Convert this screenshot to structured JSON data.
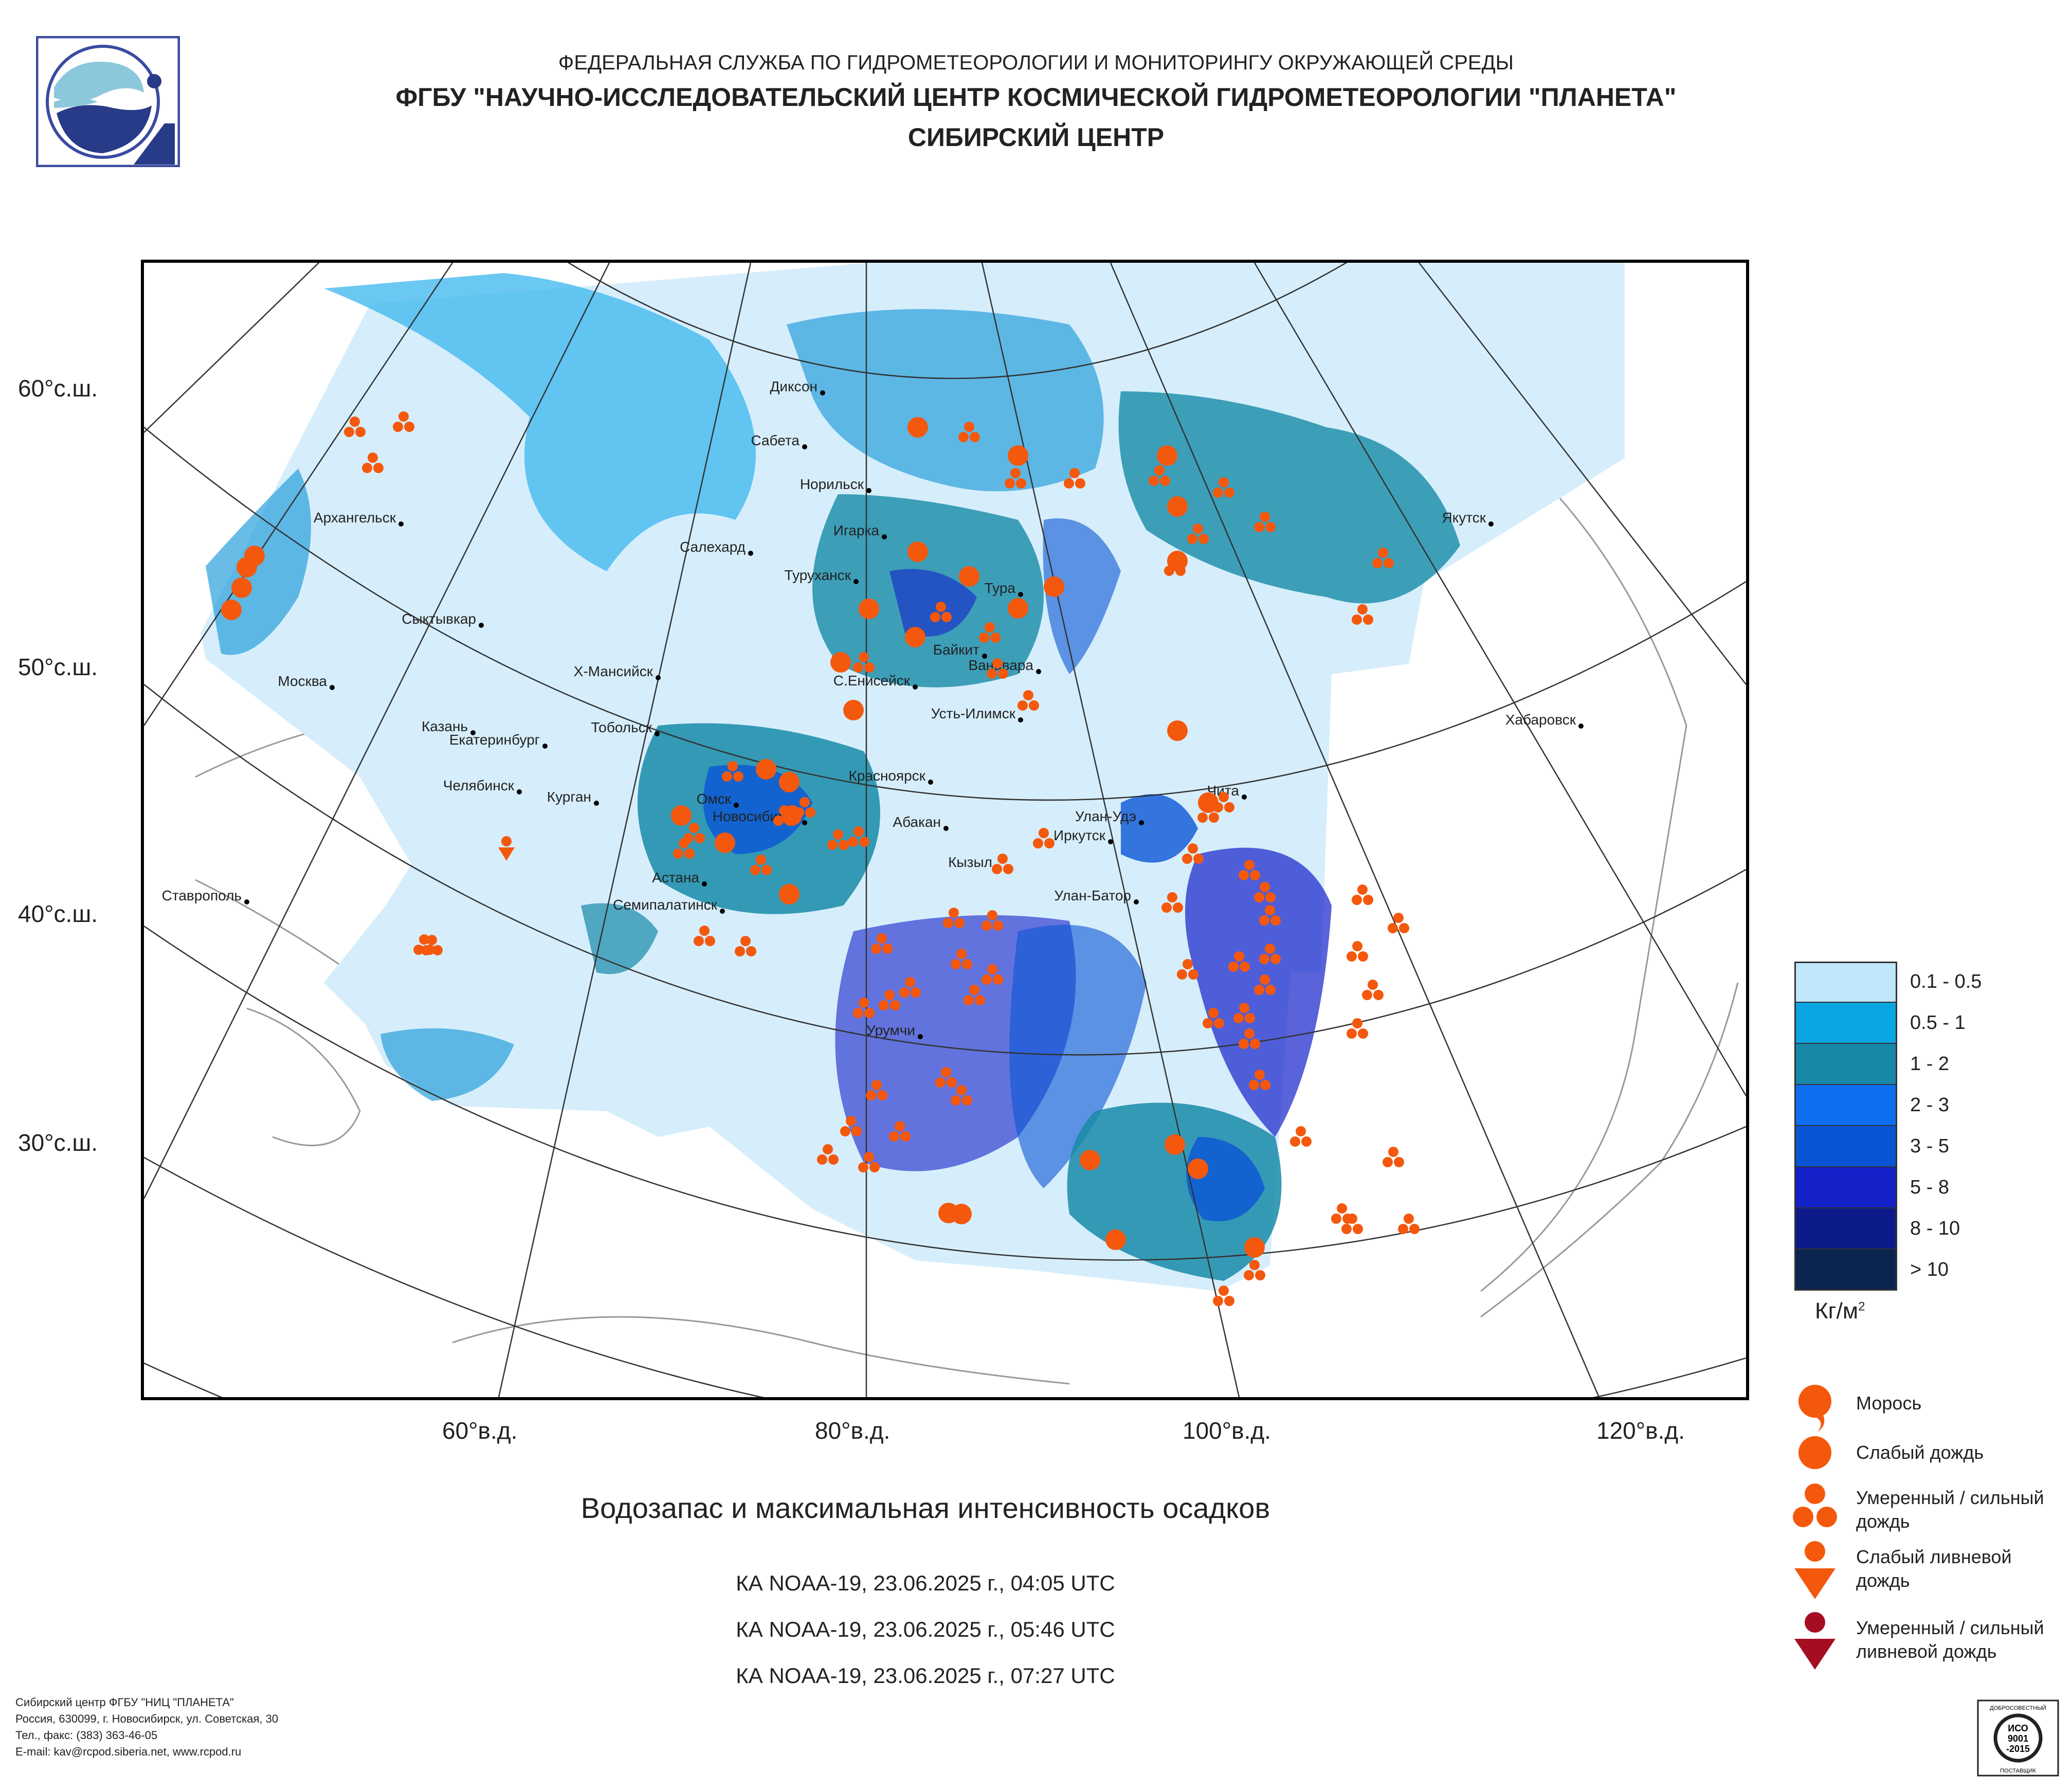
{
  "header": {
    "line1": "ФЕДЕРАЛЬНАЯ СЛУЖБА ПО ГИДРОМЕТЕОРОЛОГИИ И МОНИТОРИНГУ ОКРУЖАЮЩЕЙ СРЕДЫ",
    "line2": "ФГБУ \"НАУЧНО-ИССЛЕДОВАТЕЛЬСКИЙ ЦЕНТР КОСМИЧЕСКОЙ ГИДРОМЕТЕОРОЛОГИИ \"ПЛАНЕТА\"",
    "line3": "СИБИРСКИЙ ЦЕНТР"
  },
  "map": {
    "lat_labels": [
      "60°с.ш.",
      "50°с.ш.",
      "40°с.ш.",
      "30°с.ш."
    ],
    "lon_labels": [
      "60°в.д.",
      "80°в.д.",
      "100°в.д.",
      "120°в.д."
    ],
    "cities": [
      "Диксон",
      "Сабета",
      "Норильск",
      "Архангельск",
      "Игарка",
      "Салехард",
      "Туруханск",
      "Тура",
      "Якутск",
      "Сыктывкар",
      "Байкит",
      "Ванавара",
      "Х-Мансийск",
      "С.Енисейск",
      "Москва",
      "Усть-Илимск",
      "Хабаровск",
      "Казань",
      "Екатеринбург",
      "Тобольск",
      "Красноярск",
      "Челябинск",
      "Курган",
      "Омск",
      "Новосибирск",
      "Чита",
      "Абакан",
      "Улан-Удэ",
      "Иркутск",
      "Кызыл",
      "Ставрополь",
      "Астана",
      "Семипалатинск",
      "Улан-Батор",
      "Урумчи"
    ]
  },
  "legend": {
    "scale": [
      {
        "label": "0.1 - 0.5",
        "color": "#bfe6fb"
      },
      {
        "label": "0.5 - 1",
        "color": "#0aa6e3"
      },
      {
        "label": "1 - 2",
        "color": "#1789a8"
      },
      {
        "label": "2 - 3",
        "color": "#0d6ef0"
      },
      {
        "label": "3 - 5",
        "color": "#0a55d6"
      },
      {
        "label": "5 - 8",
        "color": "#1421c9"
      },
      {
        "label": "8 - 10",
        "color": "#0d1a8a"
      },
      {
        "label": "> 10",
        "color": "#0b2550"
      }
    ],
    "units": "Кг/м",
    "units_sup": "2",
    "symbols": [
      {
        "label_line1": "Морось",
        "label_line2": ""
      },
      {
        "label_line1": "Слабый дождь",
        "label_line2": ""
      },
      {
        "label_line1": "Умеренный / сильный",
        "label_line2": "дождь"
      },
      {
        "label_line1": "Слабый ливневой",
        "label_line2": "дождь"
      },
      {
        "label_line1": "Умеренный / сильный",
        "label_line2": "ливневой дождь"
      }
    ],
    "colors": {
      "orange": "#f4580d",
      "darkred": "#a50e22"
    }
  },
  "title": "Водозапас и максимальная интенсивность осадков",
  "passes": [
    "КА NOAA-19, 23.06.2025 г., 04:05 UTC",
    "КА NOAA-19, 23.06.2025 г., 05:46 UTC",
    "КА NOAA-19, 23.06.2025 г., 07:27 UTC"
  ],
  "footer": [
    "Сибирский центр ФГБУ \"НИЦ \"ПЛАНЕТА\"",
    "Россия, 630099, г. Новосибирск, ул. Советская, 30",
    "Тел., факс: (383) 363-46-05",
    "E-mail: kav@rcpod.siberia.net, www.rcpod.ru"
  ],
  "iso_badge": {
    "top": "ДОБРОСОВЕСТНЫЙ",
    "line1": "ИСО",
    "line2": "9001",
    "line3": "-2015",
    "bottom": "ПОСТАВЩИК"
  }
}
